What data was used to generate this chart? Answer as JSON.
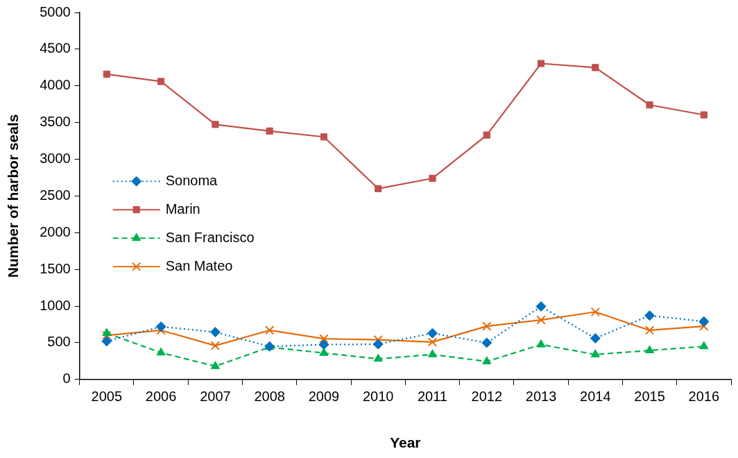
{
  "chart_data": {
    "type": "line",
    "xlabel": "Year",
    "ylabel": "Number of harbor seals",
    "categories": [
      "2005",
      "2006",
      "2007",
      "2008",
      "2009",
      "2010",
      "2011",
      "2012",
      "2013",
      "2014",
      "2015",
      "2016"
    ],
    "series": [
      {
        "name": "Sonoma",
        "color": "#0070c0",
        "marker": "diamond",
        "line_style": "dotted",
        "values": [
          520,
          720,
          645,
          450,
          475,
          480,
          630,
          500,
          995,
          560,
          870,
          790
        ]
      },
      {
        "name": "Marin",
        "color": "#c0504d",
        "marker": "square",
        "line_style": "solid",
        "values": [
          4160,
          4060,
          3475,
          3385,
          3305,
          2600,
          2740,
          3330,
          4305,
          4250,
          3740,
          3605
        ]
      },
      {
        "name": "San Francisco",
        "color": "#00b050",
        "marker": "triangle",
        "line_style": "dashed",
        "values": [
          630,
          365,
          180,
          440,
          360,
          280,
          340,
          245,
          475,
          340,
          395,
          450
        ]
      },
      {
        "name": "San Mateo",
        "color": "#e46c0a",
        "marker": "cross",
        "line_style": "solid",
        "values": [
          600,
          670,
          460,
          670,
          555,
          540,
          510,
          725,
          810,
          920,
          670,
          725
        ]
      }
    ],
    "ylim": [
      0,
      5000
    ],
    "yticks": [
      0,
      500,
      1000,
      1500,
      2000,
      2500,
      3000,
      3500,
      4000,
      4500,
      5000
    ],
    "grid": false,
    "legend": "left"
  }
}
